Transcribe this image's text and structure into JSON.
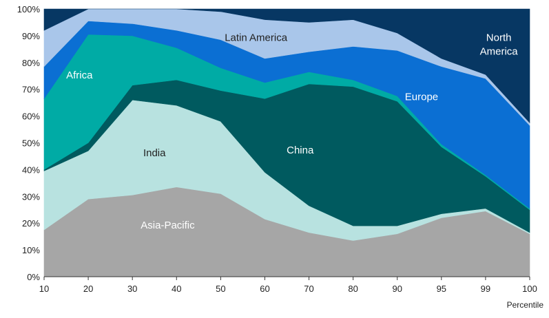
{
  "chart_data": {
    "type": "area",
    "stacked": true,
    "percent": true,
    "xlabel": "Percentile",
    "ylabel": "",
    "ylim": [
      0,
      100
    ],
    "y_ticks": [
      "0%",
      "10%",
      "20%",
      "30%",
      "40%",
      "50%",
      "60%",
      "70%",
      "80%",
      "90%",
      "100%"
    ],
    "categories": [
      "10",
      "20",
      "30",
      "40",
      "50",
      "60",
      "70",
      "80",
      "90",
      "95",
      "99",
      "100"
    ],
    "grid": false,
    "legend": "labels inside areas",
    "series": [
      {
        "name": "Asia-Pacific",
        "color": "#a6a6a6",
        "label_color": "#ffffff",
        "values": [
          17.5,
          29,
          30.5,
          33.5,
          31,
          21.5,
          16.5,
          13.5,
          16,
          22,
          24.5,
          16
        ]
      },
      {
        "name": "India",
        "color": "#b8e2e0",
        "label_color": "#222222",
        "values": [
          22,
          18,
          35.5,
          30.5,
          27,
          17.5,
          10,
          5.5,
          3,
          1.5,
          1,
          0.5
        ]
      },
      {
        "name": "China",
        "color": "#005a5f",
        "label_color": "#ffffff",
        "values": [
          0.5,
          3,
          5.5,
          9.5,
          11.5,
          27.5,
          45.5,
          52,
          46.5,
          25,
          12,
          8.5
        ]
      },
      {
        "name": "Africa",
        "color": "#00aba5",
        "label_color": "#ffffff",
        "values": [
          26.5,
          40.5,
          18.5,
          12,
          8.5,
          6,
          4.5,
          2.5,
          2,
          1,
          0.5,
          0.5
        ]
      },
      {
        "name": "Europe",
        "color": "#0b6fd3",
        "label_color": "#ffffff",
        "values": [
          12,
          5,
          4.5,
          6.5,
          10.5,
          9,
          7.5,
          12.5,
          17,
          29,
          36,
          31
        ]
      },
      {
        "name": "Latin America",
        "color": "#a9c6ea",
        "label_color": "#222222",
        "values": [
          13.5,
          4.5,
          5.5,
          8,
          10.5,
          14.5,
          11,
          10,
          6.5,
          3,
          1.5,
          1
        ]
      },
      {
        "name": "North America",
        "color": "#073763",
        "label_color": "#ffffff",
        "values": [
          8,
          0,
          0,
          0,
          1,
          4,
          5,
          4,
          9,
          18.5,
          24.5,
          42.5
        ]
      }
    ],
    "labels": [
      {
        "series": "Asia-Pacific",
        "text": "Asia-Pacific",
        "x_index": 2.8,
        "y": 18
      },
      {
        "series": "India",
        "text": "India",
        "x_index": 2.5,
        "y": 45
      },
      {
        "series": "China",
        "text": "China",
        "x_index": 5.8,
        "y": 46
      },
      {
        "series": "Africa",
        "text": "Africa",
        "x_index": 0.8,
        "y": 74
      },
      {
        "series": "Europe",
        "text": "Europe",
        "x_index": 8.55,
        "y": 66
      },
      {
        "series": "Latin America",
        "text": "Latin America",
        "x_index": 4.8,
        "y": 88
      },
      {
        "series": "North America",
        "text": [
          "North",
          "America"
        ],
        "x_index": 10.3,
        "y": 88
      }
    ]
  }
}
